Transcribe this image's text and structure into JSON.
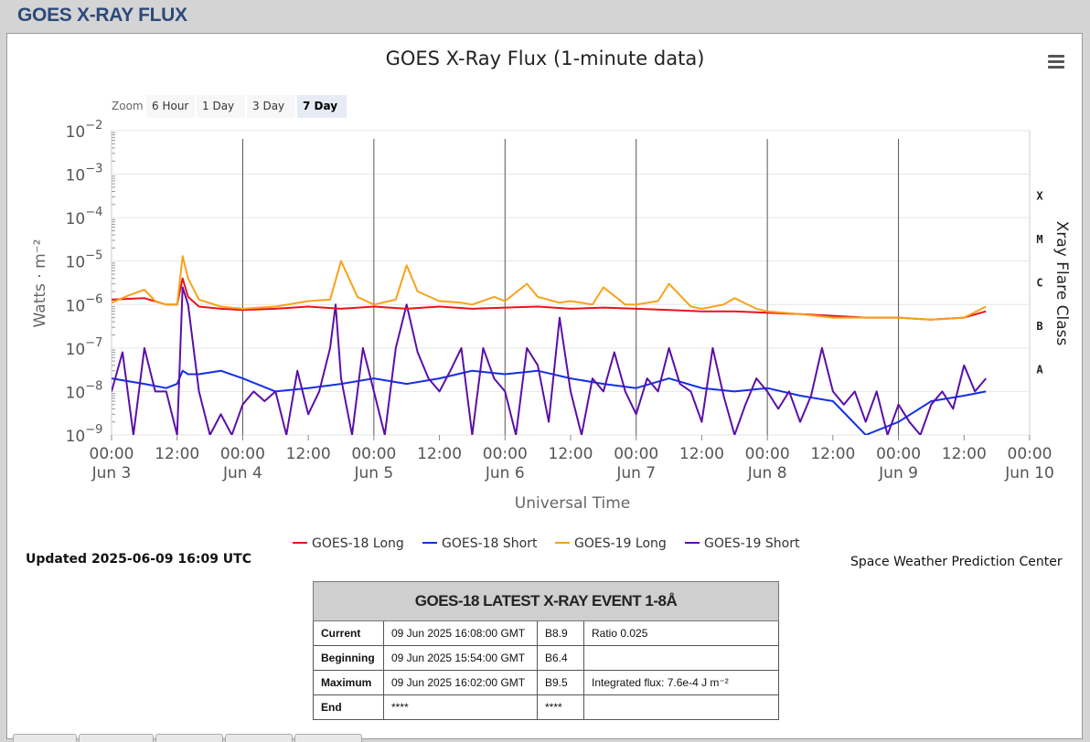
{
  "page": {
    "title": "GOES X-RAY FLUX"
  },
  "chart_data": {
    "type": "line",
    "title": "GOES X-Ray Flux (1-minute data)",
    "xlabel": "Universal Time",
    "ylabel": "Watts · m⁻²",
    "right_label": "Xray Flare Class",
    "y_scale": "log",
    "ylim": [
      1e-09,
      0.01
    ],
    "xlim": [
      "2025-06-03T00:00Z",
      "2025-06-10T00:00Z"
    ],
    "y_ticks": [
      {
        "base": "10",
        "exp": "−9"
      },
      {
        "base": "10",
        "exp": "−8"
      },
      {
        "base": "10",
        "exp": "−7"
      },
      {
        "base": "10",
        "exp": "−6"
      },
      {
        "base": "10",
        "exp": "−5"
      },
      {
        "base": "10",
        "exp": "−4"
      },
      {
        "base": "10",
        "exp": "−3"
      },
      {
        "base": "10",
        "exp": "−2"
      }
    ],
    "x_ticks": [
      {
        "time": "00:00",
        "date": "Jun 3"
      },
      {
        "time": "12:00",
        "date": ""
      },
      {
        "time": "00:00",
        "date": "Jun 4"
      },
      {
        "time": "12:00",
        "date": ""
      },
      {
        "time": "00:00",
        "date": "Jun 5"
      },
      {
        "time": "12:00",
        "date": ""
      },
      {
        "time": "00:00",
        "date": "Jun 6"
      },
      {
        "time": "12:00",
        "date": ""
      },
      {
        "time": "00:00",
        "date": "Jun 7"
      },
      {
        "time": "12:00",
        "date": ""
      },
      {
        "time": "00:00",
        "date": "Jun 8"
      },
      {
        "time": "12:00",
        "date": ""
      },
      {
        "time": "00:00",
        "date": "Jun 9"
      },
      {
        "time": "12:00",
        "date": ""
      },
      {
        "time": "00:00",
        "date": "Jun 10"
      }
    ],
    "flare_classes": [
      {
        "label": "X",
        "threshold": 0.0001
      },
      {
        "label": "M",
        "threshold": 1e-05
      },
      {
        "label": "C",
        "threshold": 1e-06
      },
      {
        "label": "B",
        "threshold": 1e-07
      },
      {
        "label": "A",
        "threshold": 1e-08
      }
    ],
    "grid": true,
    "legend_position": "bottom",
    "series": [
      {
        "name": "GOES-18 Long",
        "color": "#e8141c",
        "x_hours": [
          0,
          6,
          10,
          12,
          13,
          14,
          16,
          20,
          24,
          30,
          36,
          42,
          48,
          54,
          60,
          66,
          72,
          78,
          84,
          90,
          96,
          102,
          108,
          114,
          120,
          126,
          132,
          138,
          144,
          150,
          156,
          160
        ],
        "values": [
          1.3e-06,
          1.4e-06,
          1e-06,
          1e-06,
          4e-06,
          1.5e-06,
          9e-07,
          8e-07,
          7.5e-07,
          8e-07,
          9e-07,
          8e-07,
          9e-07,
          8e-07,
          9e-07,
          8e-07,
          8.5e-07,
          9e-07,
          8e-07,
          8.5e-07,
          8e-07,
          7.5e-07,
          7e-07,
          7e-07,
          6.5e-07,
          6e-07,
          5.5e-07,
          5e-07,
          5e-07,
          4.5e-07,
          5e-07,
          7e-07
        ]
      },
      {
        "name": "GOES-18 Short",
        "color": "#1230e6",
        "x_hours": [
          0,
          6,
          10,
          12,
          13,
          14,
          16,
          20,
          24,
          30,
          36,
          42,
          48,
          54,
          60,
          66,
          72,
          78,
          84,
          90,
          96,
          102,
          108,
          114,
          120,
          126,
          132,
          138,
          144,
          150,
          156,
          160
        ],
        "values": [
          2e-08,
          1.5e-08,
          1.2e-08,
          1.5e-08,
          3e-08,
          2.5e-08,
          2.5e-08,
          3e-08,
          2e-08,
          1e-08,
          1.2e-08,
          1.5e-08,
          2e-08,
          1.5e-08,
          2e-08,
          3e-08,
          2.5e-08,
          3e-08,
          2e-08,
          1.5e-08,
          1.2e-08,
          2e-08,
          1.2e-08,
          1e-08,
          1.2e-08,
          8e-09,
          6e-09,
          1e-09,
          2e-09,
          6e-09,
          8e-09,
          1e-08
        ]
      },
      {
        "name": "GOES-19 Long",
        "color": "#f7a21b",
        "x_hours": [
          0,
          3,
          6,
          8,
          10,
          12,
          13,
          14,
          16,
          20,
          24,
          30,
          36,
          40,
          42,
          45,
          48,
          52,
          54,
          56,
          60,
          64,
          66,
          70,
          72,
          76,
          78,
          82,
          84,
          88,
          90,
          94,
          96,
          100,
          102,
          106,
          108,
          112,
          114,
          118,
          120,
          126,
          132,
          138,
          144,
          150,
          156,
          160
        ],
        "values": [
          1.1e-06,
          1.6e-06,
          2.2e-06,
          1.2e-06,
          1e-06,
          1e-06,
          1.3e-05,
          4e-06,
          1.3e-06,
          9e-07,
          8e-07,
          9e-07,
          1.2e-06,
          1.3e-06,
          1e-05,
          1.5e-06,
          1e-06,
          1.3e-06,
          8e-06,
          2e-06,
          1.2e-06,
          1.1e-06,
          1e-06,
          1.5e-06,
          1.2e-06,
          3e-06,
          1.5e-06,
          1.1e-06,
          1.2e-06,
          1e-06,
          2.5e-06,
          1e-06,
          1e-06,
          1.2e-06,
          3e-06,
          9e-07,
          8e-07,
          1e-06,
          1.4e-06,
          8e-07,
          7e-07,
          6e-07,
          5e-07,
          5e-07,
          5e-07,
          4.5e-07,
          5e-07,
          9e-07
        ]
      },
      {
        "name": "GOES-19 Short",
        "color": "#5b0fa8",
        "x_hours": [
          0,
          2,
          4,
          6,
          8,
          10,
          12,
          13,
          14,
          16,
          18,
          20,
          22,
          24,
          26,
          28,
          30,
          32,
          34,
          36,
          38,
          40,
          41,
          42,
          44,
          46,
          48,
          50,
          52,
          54,
          56,
          58,
          60,
          62,
          64,
          66,
          68,
          70,
          72,
          74,
          76,
          78,
          80,
          82,
          84,
          86,
          88,
          90,
          92,
          94,
          96,
          98,
          100,
          102,
          104,
          106,
          108,
          110,
          112,
          114,
          116,
          118,
          120,
          122,
          124,
          126,
          128,
          130,
          132,
          134,
          136,
          138,
          140,
          142,
          144,
          146,
          148,
          150,
          152,
          154,
          156,
          158,
          160
        ],
        "values": [
          1e-08,
          8e-08,
          1e-09,
          1e-07,
          1e-08,
          1e-08,
          1e-09,
          2.5e-06,
          1e-06,
          1e-08,
          1e-09,
          3e-09,
          1e-09,
          5e-09,
          1e-08,
          6e-09,
          1e-08,
          1e-09,
          3e-08,
          3e-09,
          1e-08,
          1e-07,
          1e-06,
          2e-08,
          1e-09,
          1e-07,
          1e-08,
          1e-09,
          1e-07,
          1e-06,
          8e-08,
          2e-08,
          1e-08,
          3e-08,
          1e-07,
          1e-09,
          1e-07,
          2e-08,
          1e-08,
          1e-09,
          1e-07,
          4e-08,
          2e-09,
          5e-07,
          1e-08,
          1e-09,
          2e-08,
          1e-08,
          8e-08,
          1e-08,
          3e-09,
          2e-08,
          1e-08,
          1e-07,
          1.5e-08,
          1e-08,
          2e-09,
          1e-07,
          8e-09,
          1e-09,
          5e-09,
          2e-08,
          1e-08,
          4e-09,
          1e-08,
          2e-09,
          8e-09,
          1e-07,
          1e-08,
          5e-09,
          1e-08,
          2e-09,
          1e-08,
          1e-09,
          5e-09,
          2e-09,
          1e-09,
          5e-09,
          1e-08,
          4e-09,
          4e-08,
          1e-08,
          2e-08
        ]
      }
    ]
  },
  "zoom": {
    "label": "Zoom",
    "buttons": [
      "6 Hour",
      "1 Day",
      "3 Day",
      "7 Day"
    ],
    "active": "7 Day"
  },
  "updated": "Updated 2025-06-09 16:09 UTC",
  "credit": "Space Weather Prediction Center",
  "event_table": {
    "title": "GOES-18 LATEST X-RAY EVENT 1-8Å",
    "rows": [
      {
        "label": "Current",
        "time": "09 Jun 2025 16:08:00 GMT",
        "class": "B8.9",
        "note": "Ratio 0.025"
      },
      {
        "label": "Beginning",
        "time": "09 Jun 2025 15:54:00 GMT",
        "class": "B6.4",
        "note": ""
      },
      {
        "label": "Maximum",
        "time": "09 Jun 2025 16:02:00 GMT",
        "class": "B9.5",
        "note": "Integrated flux: 7.6e-4 J m⁻²"
      },
      {
        "label": "End",
        "time": "****",
        "class": "****",
        "note": ""
      }
    ]
  }
}
